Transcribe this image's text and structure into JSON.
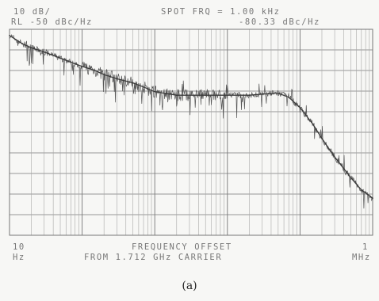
{
  "header": {
    "scale": "10 dB/",
    "ref_level": "RL  -50 dBc/Hz",
    "spot_freq": "SPOT FRQ =   1.00 kHz",
    "spot_value": "-80.33 dBc/Hz"
  },
  "footer": {
    "x_start_value": "10",
    "x_start_unit": "Hz",
    "x_end_value": "1",
    "x_end_unit": "MHz",
    "xlabel_line1": "FREQUENCY OFFSET",
    "xlabel_line2": "FROM  1.712 GHz CARRIER"
  },
  "caption": "(a)",
  "chart_data": {
    "type": "line",
    "title": "",
    "xlabel": "FREQUENCY OFFSET FROM 1.712 GHz CARRIER",
    "ylabel": "",
    "x_scale": "log",
    "xlim": [
      10,
      1000000
    ],
    "ylim": [
      -150,
      -50
    ],
    "y_units": "dBc/Hz",
    "grid": true,
    "series": [
      {
        "x": [
          10,
          15,
          20,
          30,
          50,
          70,
          100,
          150,
          200,
          300,
          500,
          700,
          1000,
          2000,
          5000,
          10000,
          20000,
          30000,
          50000,
          70000,
          100000,
          150000,
          200000,
          300000,
          500000,
          700000,
          1000000
        ],
        "values": [
          -53,
          -57,
          -59,
          -61,
          -64,
          -66,
          -68,
          -70,
          -72,
          -74,
          -76,
          -78,
          -80.3,
          -82,
          -82,
          -82,
          -82,
          -81.5,
          -81,
          -83,
          -88,
          -96,
          -103,
          -112,
          -122,
          -128,
          -132
        ]
      }
    ]
  },
  "colors": {
    "grid_major": "#777777",
    "grid_minor": "#a8a8a8",
    "trace": "#555555",
    "fit": "#3a3a3a"
  }
}
